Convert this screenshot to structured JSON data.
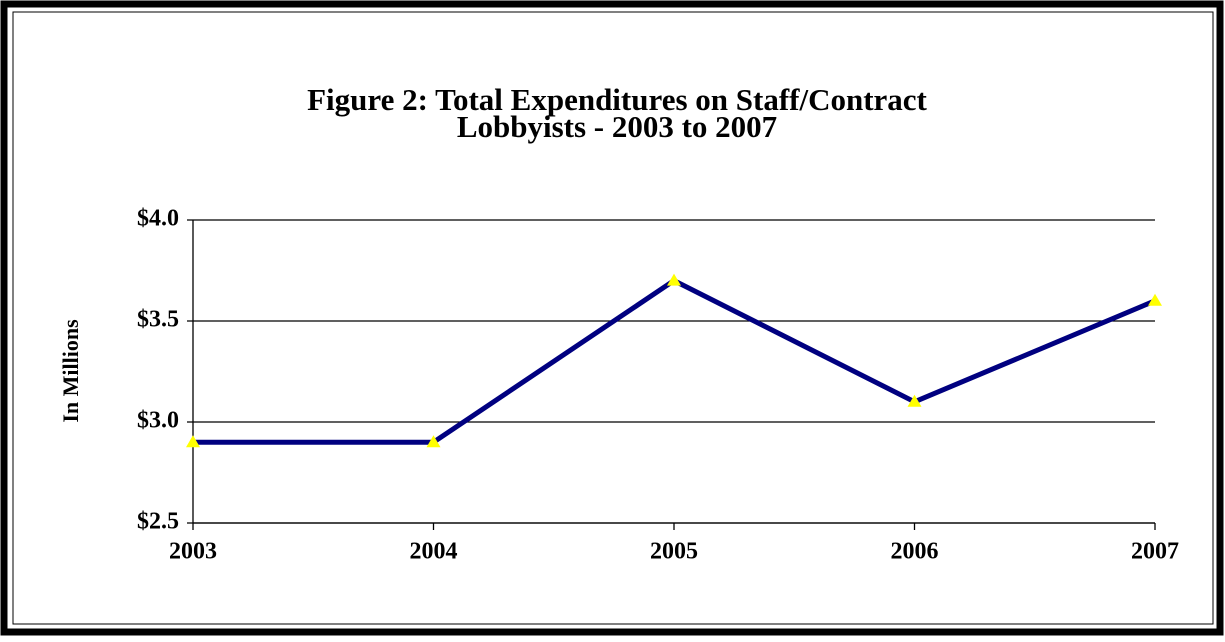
{
  "chart_data": {
    "type": "line",
    "title": [
      "Figure 2:  Total Expenditures on Staff/Contract",
      "Lobbyists - 2003 to 2007"
    ],
    "y_label": "In Millions",
    "categories": [
      "2003",
      "2004",
      "2005",
      "2006",
      "2007"
    ],
    "series": [
      {
        "name": "Total Expenditures",
        "color": "#000080",
        "marker_color": "#ffff00",
        "values": [
          2.9,
          2.9,
          3.7,
          3.1,
          3.6
        ]
      }
    ],
    "ylim": [
      2.5,
      4.0
    ],
    "yticks": [
      {
        "value": 2.5,
        "label": "$2.5"
      },
      {
        "value": 3.0,
        "label": "$3.0"
      },
      {
        "value": 3.5,
        "label": "$3.5"
      },
      {
        "value": 4.0,
        "label": "$4.0"
      }
    ],
    "grid": true
  }
}
